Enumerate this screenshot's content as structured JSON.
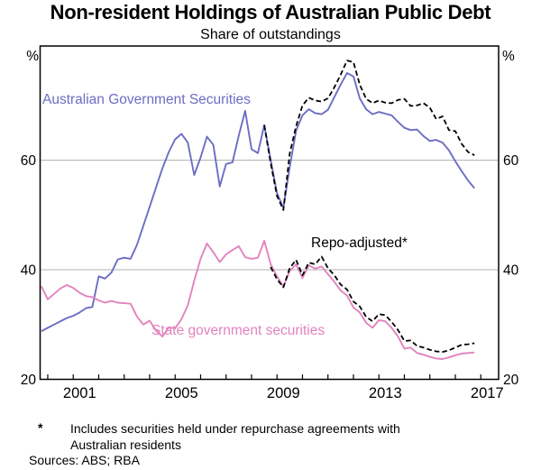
{
  "title": "Non-resident Holdings of Australian Public Debt",
  "subtitle": "Share of outstandings",
  "labels": {
    "ags": "Australian Government Securities",
    "state": "State government securities",
    "repo": "Repo-adjusted*"
  },
  "footnote": {
    "marker": "*",
    "line1": "Includes securities held under repurchase agreements with",
    "line2": "Australian residents"
  },
  "sources": "Sources: ABS; RBA",
  "colors": {
    "ags": "#6c6dc4",
    "state": "#e283bf",
    "repo": "#000000",
    "grid": "#b0b0b0",
    "frame": "#000000"
  },
  "y_axis": {
    "unit_left": "%",
    "unit_right": "%",
    "ticks": [
      20,
      40,
      60
    ]
  },
  "x_axis": {
    "tick_years": [
      2000,
      2001,
      2002,
      2003,
      2004,
      2005,
      2006,
      2007,
      2008,
      2009,
      2010,
      2011,
      2012,
      2013,
      2014,
      2015,
      2016,
      2017
    ],
    "labels": [
      2001,
      2005,
      2009,
      2013,
      2017
    ]
  },
  "chart_data": {
    "type": "line",
    "title": "Non-resident Holdings of Australian Public Debt",
    "subtitle": "Share of outstandings",
    "ylabel": "%",
    "ylim": [
      20,
      80
    ],
    "xlim": [
      1999.7,
      2017.7
    ],
    "grid": "horizontal at 40 and 60",
    "legend_position": "inline annotations",
    "x_unit": "year (quarterly observations)",
    "series": [
      {
        "name": "Australian Government Securities",
        "color": "#6c6dc4",
        "style": "solid",
        "x_start": 1999.75,
        "x_step": 0.25,
        "values": [
          28.8,
          29.4,
          30.0,
          30.6,
          31.2,
          31.6,
          32.2,
          33.0,
          33.2,
          38.8,
          38.4,
          39.5,
          41.9,
          42.2,
          42.0,
          44.5,
          48.0,
          51.5,
          55.0,
          58.5,
          61.5,
          63.8,
          64.8,
          63.2,
          57.3,
          60.5,
          64.3,
          62.8,
          55.2,
          59.3,
          59.6,
          64.5,
          69.0,
          62.0,
          61.3,
          66.4,
          60.0,
          54.0,
          51.3,
          58.7,
          65.4,
          68.2,
          69.3,
          68.6,
          68.4,
          69.2,
          71.5,
          73.8,
          75.9,
          75.3,
          71.3,
          69.3,
          68.4,
          68.8,
          68.5,
          68.2,
          67.0,
          65.9,
          65.5,
          65.6,
          64.4,
          63.5,
          63.7,
          63.2,
          61.8,
          59.8,
          58.0,
          56.3,
          54.9
        ]
      },
      {
        "name": "State government securities",
        "color": "#e283bf",
        "style": "solid",
        "x_start": 1999.75,
        "x_step": 0.25,
        "values": [
          37.0,
          34.6,
          35.6,
          36.6,
          37.2,
          36.7,
          35.8,
          35.2,
          35.0,
          34.4,
          34.0,
          34.3,
          34.0,
          33.9,
          33.8,
          31.5,
          30.0,
          30.7,
          28.9,
          27.8,
          29.5,
          29.3,
          31.0,
          33.5,
          38.0,
          42.0,
          44.8,
          43.2,
          41.4,
          42.8,
          43.6,
          44.3,
          42.3,
          42.0,
          42.2,
          45.3,
          41.0,
          38.8,
          36.9,
          39.8,
          41.0,
          38.5,
          40.8,
          40.2,
          40.6,
          39.2,
          37.8,
          36.2,
          35.3,
          33.1,
          32.2,
          30.3,
          29.4,
          30.8,
          30.6,
          29.4,
          27.8,
          25.6,
          25.8,
          24.8,
          24.5,
          24.1,
          23.8,
          23.7,
          24.0,
          24.4,
          24.7,
          24.8,
          24.9
        ]
      },
      {
        "name": "Australian Government Securities (repo-adjusted)",
        "color": "#000000",
        "style": "dashed",
        "x_start": 2008.5,
        "x_step": 0.25,
        "values": [
          66.4,
          59.5,
          53.5,
          50.9,
          61.2,
          66.2,
          70.0,
          71.4,
          70.9,
          70.7,
          71.3,
          73.3,
          75.6,
          78.2,
          77.9,
          73.8,
          71.2,
          70.4,
          70.9,
          70.5,
          70.4,
          71.0,
          71.2,
          69.9,
          70.0,
          70.4,
          69.6,
          67.5,
          68.0,
          65.5,
          65.3,
          63.0,
          61.5,
          60.9
        ]
      },
      {
        "name": "State government securities (repo-adjusted)",
        "color": "#000000",
        "style": "dashed",
        "x_start": 2008.75,
        "x_step": 0.25,
        "values": [
          40.5,
          38.3,
          36.8,
          40.3,
          41.8,
          39.0,
          41.3,
          41.0,
          42.4,
          40.3,
          39.0,
          37.3,
          36.4,
          34.2,
          33.3,
          31.4,
          30.6,
          31.9,
          31.7,
          30.5,
          29.0,
          27.0,
          27.1,
          26.1,
          25.8,
          25.4,
          25.1,
          25.0,
          25.3,
          25.8,
          26.3,
          26.4,
          26.6
        ]
      }
    ]
  }
}
